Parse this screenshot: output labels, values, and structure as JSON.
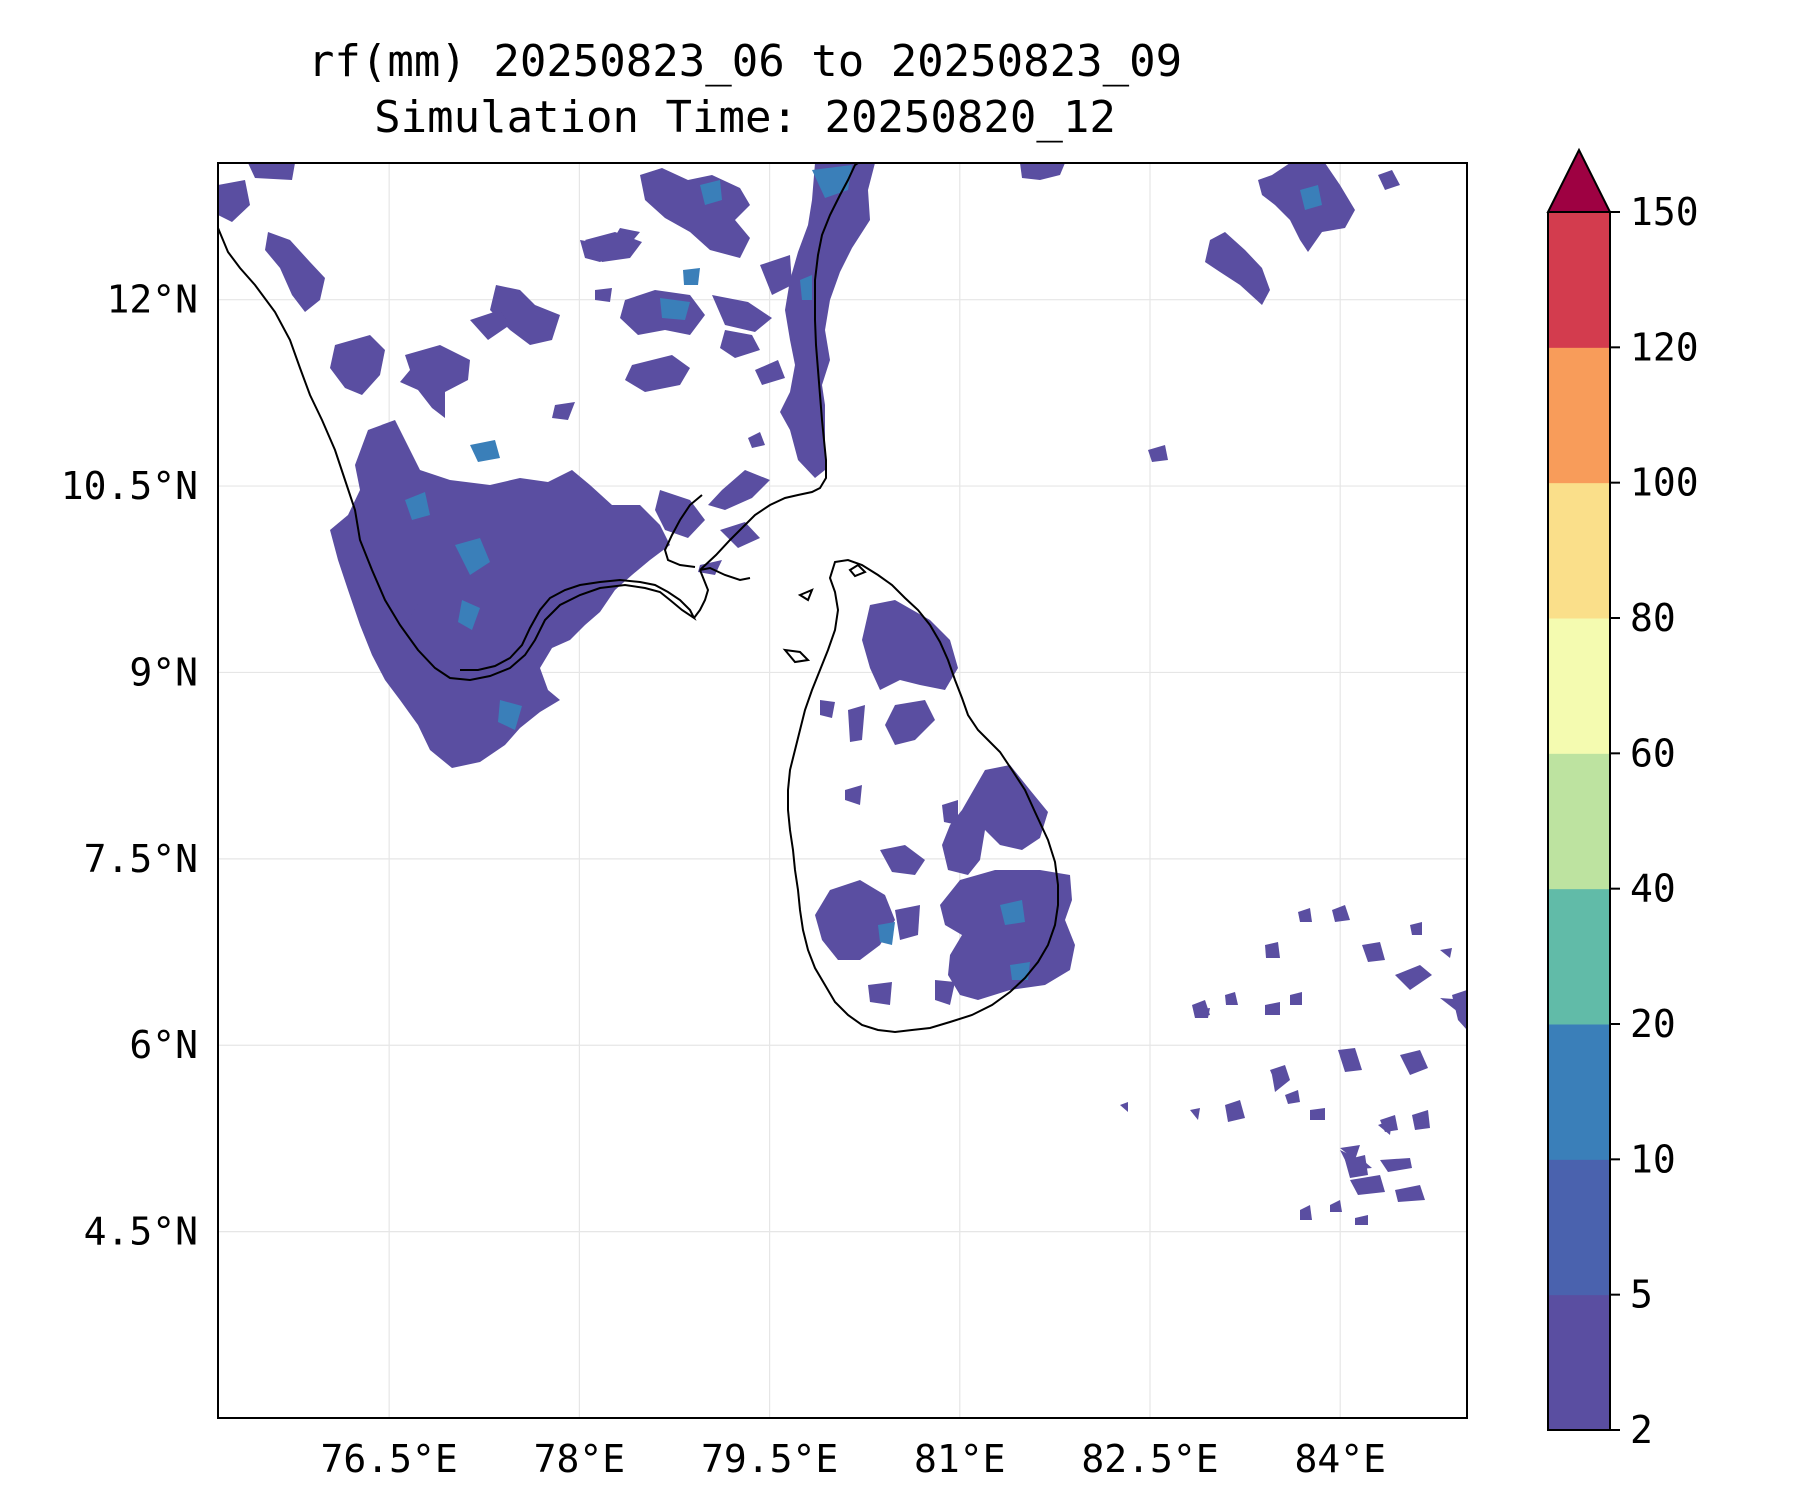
{
  "title": {
    "line1": "rf(mm) 20250823_06 to 20250823_09",
    "line2": "Simulation Time: 20250820_12"
  },
  "map": {
    "lon_range": [
      75.15,
      85.0
    ],
    "lat_range": [
      3.0,
      13.1
    ],
    "lon_ticks": [
      {
        "value": 76.5,
        "label": "76.5°E"
      },
      {
        "value": 78.0,
        "label": "78°E"
      },
      {
        "value": 79.5,
        "label": "79.5°E"
      },
      {
        "value": 81.0,
        "label": "81°E"
      },
      {
        "value": 82.5,
        "label": "82.5°E"
      },
      {
        "value": 84.0,
        "label": "84°E"
      }
    ],
    "lat_ticks": [
      {
        "value": 12.0,
        "label": "12°N"
      },
      {
        "value": 10.5,
        "label": "10.5°N"
      },
      {
        "value": 9.0,
        "label": "9°N"
      },
      {
        "value": 7.5,
        "label": "7.5°N"
      },
      {
        "value": 6.0,
        "label": "6°N"
      },
      {
        "value": 4.5,
        "label": "4.5°N"
      }
    ],
    "grid": true,
    "coastline_color": "#000000"
  },
  "colorbar": {
    "levels": [
      "2",
      "5",
      "10",
      "20",
      "40",
      "60",
      "80",
      "100",
      "120",
      "150"
    ],
    "colors": [
      "#5a4ea1",
      "#4a62ae",
      "#3a7fb9",
      "#61bba8",
      "#bde3a0",
      "#f4fbb0",
      "#fadf8a",
      "#f89c5a",
      "#d33c4e"
    ],
    "extend_color": "#9e0142",
    "extend": "max"
  },
  "rain_colors": {
    "light": "#5a4ea1",
    "moderate": "#3a7fb9"
  }
}
